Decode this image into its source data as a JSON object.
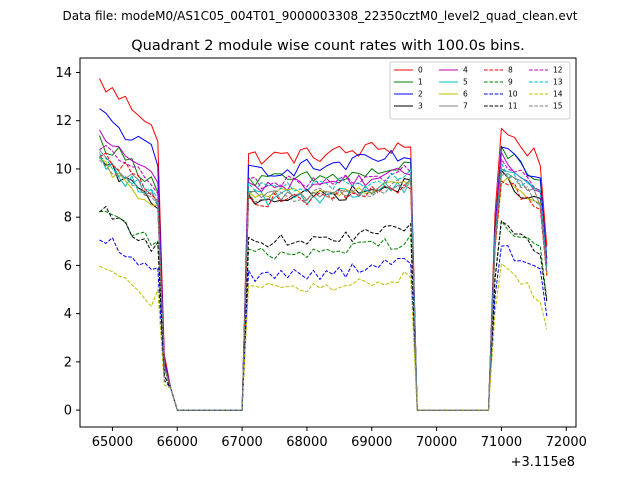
{
  "figure": {
    "suptitle": "Data file: modeM0/AS1C05_004T01_9000003308_22350cztM0_level2_quad_clean.evt"
  },
  "chart_data": {
    "type": "line",
    "title": "Quadrant 2 module wise count rates with 100.0s bins.",
    "xlabel": "",
    "ylabel": "",
    "x_offset_label": "+3.115e8",
    "xlim": [
      64500,
      72150
    ],
    "ylim": [
      -0.7,
      14.6
    ],
    "xticks": [
      65000,
      66000,
      67000,
      68000,
      69000,
      70000,
      71000,
      72000
    ],
    "yticks": [
      0,
      2,
      4,
      6,
      8,
      10,
      12,
      14
    ],
    "grid": false,
    "legend": {
      "placement": "top-right",
      "columns": 4
    },
    "segments": [
      {
        "start": 64800,
        "end": 65600
      },
      {
        "start": 67100,
        "end": 69600
      },
      {
        "start": 71000,
        "end": 71600
      }
    ],
    "series": [
      {
        "name": "0",
        "color": "#ff0000",
        "dash": "solid",
        "b1": 13.6,
        "b2": 10.5,
        "b3": 11.3,
        "noise": 0.35
      },
      {
        "name": "1",
        "color": "#008000",
        "dash": "solid",
        "b1": 11.2,
        "b2": 9.5,
        "b3": 10.5,
        "noise": 0.35
      },
      {
        "name": "2",
        "color": "#0000ff",
        "dash": "solid",
        "b1": 12.3,
        "b2": 10.0,
        "b3": 10.4,
        "noise": 0.35
      },
      {
        "name": "3",
        "color": "#000000",
        "dash": "solid",
        "b1": 10.3,
        "b2": 8.8,
        "b3": 9.4,
        "noise": 0.3
      },
      {
        "name": "4",
        "color": "#bf00bf",
        "dash": "solid",
        "b1": 11.4,
        "b2": 9.3,
        "b3": 10.1,
        "noise": 0.3
      },
      {
        "name": "5",
        "color": "#00bfbf",
        "dash": "solid",
        "b1": 10.4,
        "b2": 8.8,
        "b3": 10.0,
        "noise": 0.35
      },
      {
        "name": "6",
        "color": "#bfbf00",
        "dash": "solid",
        "b1": 10.2,
        "b2": 8.9,
        "b3": 9.3,
        "noise": 0.3
      },
      {
        "name": "7",
        "color": "#808080",
        "dash": "solid",
        "b1": 10.5,
        "b2": 8.9,
        "b3": 9.6,
        "noise": 0.3
      },
      {
        "name": "8",
        "color": "#ff0000",
        "dash": "dashed",
        "b1": 10.8,
        "b2": 8.7,
        "b3": 9.3,
        "noise": 0.3
      },
      {
        "name": "9",
        "color": "#008000",
        "dash": "dashed",
        "b1": 8.5,
        "b2": 6.5,
        "b3": 7.6,
        "noise": 0.3
      },
      {
        "name": "10",
        "color": "#0000ff",
        "dash": "dashed",
        "b1": 7.3,
        "b2": 5.6,
        "b3": 6.5,
        "noise": 0.3
      },
      {
        "name": "11",
        "color": "#000000",
        "dash": "dashed",
        "b1": 8.4,
        "b2": 7.0,
        "b3": 7.5,
        "noise": 0.25
      },
      {
        "name": "12",
        "color": "#bf00bf",
        "dash": "dashed",
        "b1": 11.0,
        "b2": 9.4,
        "b3": 10.0,
        "noise": 0.3
      },
      {
        "name": "13",
        "color": "#00bfbf",
        "dash": "dashed",
        "b1": 10.6,
        "b2": 9.2,
        "b3": 9.8,
        "noise": 0.3
      },
      {
        "name": "14",
        "color": "#bfbf00",
        "dash": "dashed",
        "b1": 6.1,
        "b2": 5.0,
        "b3": 5.6,
        "noise": 0.25
      },
      {
        "name": "15",
        "color": "#808080",
        "dash": "dashed",
        "b1": 10.5,
        "b2": 8.8,
        "b3": 9.5,
        "noise": 0.3
      }
    ]
  }
}
